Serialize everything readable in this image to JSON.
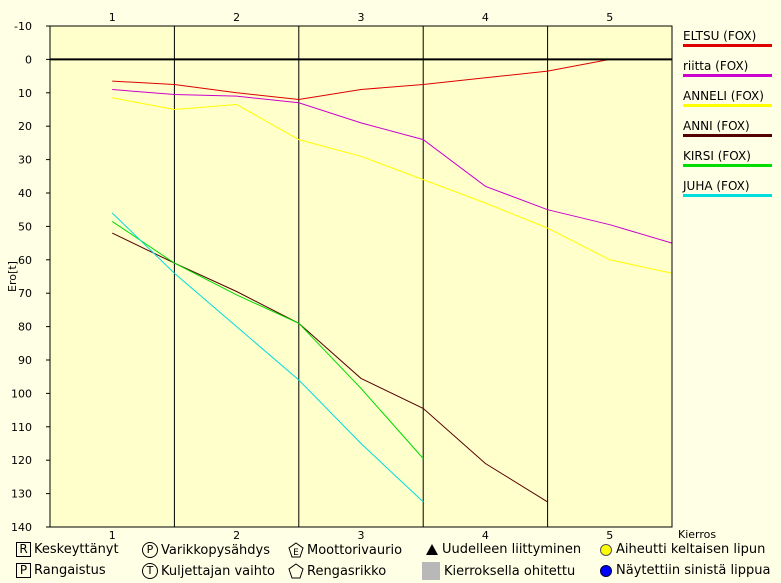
{
  "chart_data": {
    "type": "line",
    "ylabel": "Ero[t]",
    "xlabel": "Kierros",
    "ylim": [
      -10,
      140
    ],
    "y_inverted": true,
    "yticks": [
      -10,
      0,
      10,
      20,
      30,
      40,
      50,
      60,
      70,
      80,
      90,
      100,
      110,
      120,
      130,
      140
    ],
    "lap_labels": [
      "1",
      "2",
      "3",
      "4",
      "5"
    ],
    "lap_boundaries": [
      0,
      1,
      2,
      3,
      4,
      5
    ],
    "x_range": [
      0,
      5
    ],
    "legend_position": "right",
    "series": [
      {
        "name": "ELTSU (FOX)",
        "color": "#dd0000",
        "x": [
          0.5,
          1,
          1.5,
          2,
          2.5,
          3,
          3.5,
          4,
          4.5,
          5
        ],
        "y": [
          6.5,
          7.5,
          10,
          12,
          9,
          7.5,
          5.5,
          3.5,
          0,
          0
        ]
      },
      {
        "name": "riitta (FOX)",
        "color": "#cc00cc",
        "x": [
          0.5,
          1,
          1.5,
          2,
          2.5,
          3,
          3.5,
          4,
          4.5,
          5
        ],
        "y": [
          9,
          10.5,
          11,
          13,
          19,
          24,
          38,
          45,
          49.5,
          55
        ]
      },
      {
        "name": "ANNELI (FOX)",
        "color": "#ffff00",
        "x": [
          0.5,
          1,
          1.5,
          2,
          2.5,
          3,
          3.5,
          4,
          4.5,
          5
        ],
        "y": [
          11.5,
          15,
          13.5,
          24,
          29,
          36,
          43,
          50.5,
          60,
          64
        ]
      },
      {
        "name": "ANNI (FOX)",
        "color": "#550000",
        "x": [
          0.5,
          1,
          1.5,
          2,
          2.5,
          3,
          3.5,
          4
        ],
        "y": [
          52,
          61,
          69.5,
          79,
          95.5,
          104.5,
          121,
          132.5
        ]
      },
      {
        "name": "KIRSI (FOX)",
        "color": "#00dd00",
        "x": [
          0.5,
          1,
          1.5,
          2,
          2.5,
          3
        ],
        "y": [
          48.5,
          61,
          70.5,
          79,
          98.5,
          119.5
        ]
      },
      {
        "name": "JUHA (FOX)",
        "color": "#00dddd",
        "x": [
          0.5,
          1,
          1.5,
          2,
          2.5,
          3
        ],
        "y": [
          46,
          64,
          80,
          96,
          115,
          132.5
        ]
      }
    ]
  },
  "bottom_legend": [
    {
      "symbol": "R",
      "kind": "box",
      "icon": "r-box-icon",
      "label": "Keskeyttänyt"
    },
    {
      "symbol": "P",
      "kind": "box",
      "icon": "p-box-icon",
      "label": "Rangaistus"
    },
    {
      "symbol": "P",
      "kind": "circle",
      "icon": "p-circle-icon",
      "label": "Varikkopysähdys"
    },
    {
      "symbol": "T",
      "kind": "circle",
      "icon": "t-circle-icon",
      "label": "Kuljettajan vaihto"
    },
    {
      "symbol": "E",
      "kind": "pent",
      "icon": "e-pentagon-icon",
      "label": "Moottorivaurio"
    },
    {
      "symbol": "",
      "kind": "pent",
      "icon": "pentagon-icon",
      "label": "Rengasrikko"
    },
    {
      "symbol": "",
      "kind": "tri",
      "icon": "triangle-icon",
      "label": "Uudelleen liittyminen"
    },
    {
      "symbol": "",
      "kind": "grey",
      "icon": "grey-square-icon",
      "label": "Kierroksella ohitettu"
    },
    {
      "symbol": "",
      "kind": "dot-y",
      "icon": "yellow-dot-icon",
      "label": "Aiheutti keltaisen lipun"
    },
    {
      "symbol": "",
      "kind": "dot-b",
      "icon": "blue-dot-icon",
      "label": "Näytettiin sinistä lippua"
    }
  ]
}
